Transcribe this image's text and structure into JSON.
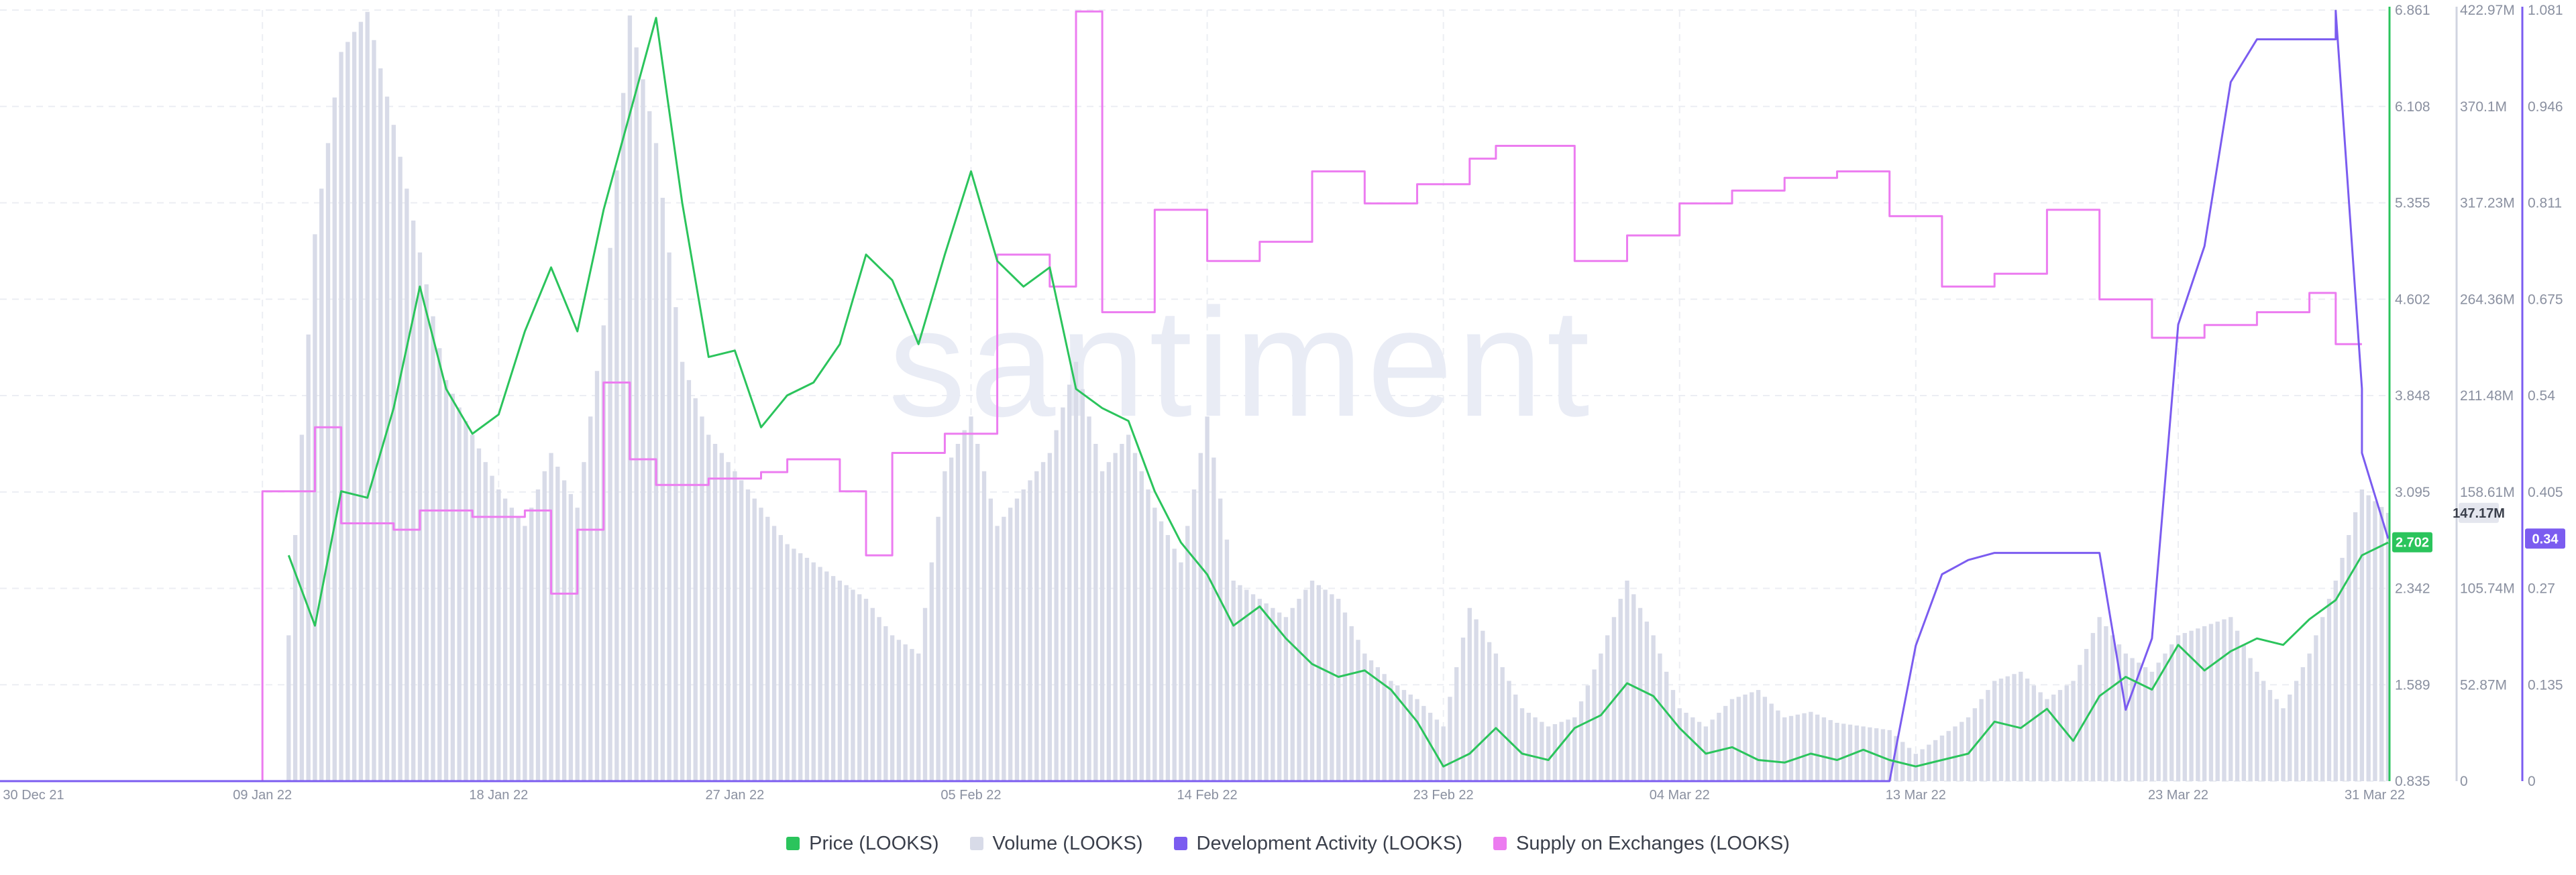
{
  "watermark": "santiment",
  "chart_data": {
    "type": "line",
    "x_tick_labels": [
      "30 Dec 21",
      "09 Jan 22",
      "18 Jan 22",
      "27 Jan 22",
      "05 Feb 22",
      "14 Feb 22",
      "23 Feb 22",
      "04 Mar 22",
      "13 Mar 22",
      "23 Mar 22",
      "31 Mar 22"
    ],
    "x_range": [
      "2021-12-30",
      "2022-03-31"
    ],
    "grid": true,
    "legend_position": "bottom-center",
    "axes": {
      "price": {
        "ylim": [
          0.835,
          6.861
        ],
        "tick_labels": [
          "6.861",
          "6.108",
          "5.355",
          "4.602",
          "3.848",
          "3.095",
          "2.342",
          "1.589",
          "0.835"
        ],
        "color": "#2bc45c"
      },
      "volume": {
        "ylim": [
          0,
          422970000
        ],
        "tick_labels": [
          "422.97M",
          "370.1M",
          "317.23M",
          "264.36M",
          "211.48M",
          "158.61M",
          "105.74M",
          "52.87M",
          "0"
        ],
        "color": "#d8dbe8"
      },
      "dev_activity": {
        "ylim": [
          0,
          1.081
        ],
        "tick_labels": [
          "1.081",
          "0.946",
          "0.811",
          "0.675",
          "0.54",
          "0.405",
          "0.27",
          "0.135",
          "0"
        ],
        "color": "#7b5cf0"
      }
    },
    "current_values": {
      "price": "2.702",
      "volume": "147.17M",
      "dev_activity": "0.34"
    },
    "series": [
      {
        "name": "Price (LOOKS)",
        "axis": "price",
        "color": "#2bc45c",
        "points": [
          [
            "2022-01-10",
            2.6
          ],
          [
            "2022-01-11",
            2.05
          ],
          [
            "2022-01-12",
            3.1
          ],
          [
            "2022-01-13",
            3.05
          ],
          [
            "2022-01-14",
            3.75
          ],
          [
            "2022-01-15",
            4.7
          ],
          [
            "2022-01-16",
            3.9
          ],
          [
            "2022-01-17",
            3.55
          ],
          [
            "2022-01-18",
            3.7
          ],
          [
            "2022-01-19",
            4.35
          ],
          [
            "2022-01-20",
            4.85
          ],
          [
            "2022-01-21",
            4.35
          ],
          [
            "2022-01-22",
            5.3
          ],
          [
            "2022-01-23",
            6.05
          ],
          [
            "2022-01-24",
            6.8
          ],
          [
            "2022-01-25",
            5.35
          ],
          [
            "2022-01-26",
            4.15
          ],
          [
            "2022-01-27",
            4.2
          ],
          [
            "2022-01-28",
            3.6
          ],
          [
            "2022-01-29",
            3.85
          ],
          [
            "2022-01-30",
            3.95
          ],
          [
            "2022-01-31",
            4.25
          ],
          [
            "2022-02-01",
            4.95
          ],
          [
            "2022-02-02",
            4.75
          ],
          [
            "2022-02-03",
            4.25
          ],
          [
            "2022-02-04",
            4.95
          ],
          [
            "2022-02-05",
            5.6
          ],
          [
            "2022-02-06",
            4.9
          ],
          [
            "2022-02-07",
            4.7
          ],
          [
            "2022-02-08",
            4.85
          ],
          [
            "2022-02-09",
            3.9
          ],
          [
            "2022-02-10",
            3.75
          ],
          [
            "2022-02-11",
            3.65
          ],
          [
            "2022-02-12",
            3.1
          ],
          [
            "2022-02-13",
            2.7
          ],
          [
            "2022-02-14",
            2.45
          ],
          [
            "2022-02-15",
            2.05
          ],
          [
            "2022-02-16",
            2.2
          ],
          [
            "2022-02-17",
            1.95
          ],
          [
            "2022-02-18",
            1.75
          ],
          [
            "2022-02-19",
            1.65
          ],
          [
            "2022-02-20",
            1.7
          ],
          [
            "2022-02-21",
            1.55
          ],
          [
            "2022-02-22",
            1.3
          ],
          [
            "2022-02-23",
            0.95
          ],
          [
            "2022-02-24",
            1.05
          ],
          [
            "2022-02-25",
            1.25
          ],
          [
            "2022-02-26",
            1.05
          ],
          [
            "2022-02-27",
            1.0
          ],
          [
            "2022-02-28",
            1.25
          ],
          [
            "2022-03-01",
            1.35
          ],
          [
            "2022-03-02",
            1.6
          ],
          [
            "2022-03-03",
            1.5
          ],
          [
            "2022-03-04",
            1.25
          ],
          [
            "2022-03-05",
            1.05
          ],
          [
            "2022-03-06",
            1.1
          ],
          [
            "2022-03-07",
            1.0
          ],
          [
            "2022-03-08",
            0.98
          ],
          [
            "2022-03-09",
            1.05
          ],
          [
            "2022-03-10",
            1.0
          ],
          [
            "2022-03-11",
            1.08
          ],
          [
            "2022-03-12",
            1.0
          ],
          [
            "2022-03-13",
            0.95
          ],
          [
            "2022-03-14",
            1.0
          ],
          [
            "2022-03-15",
            1.05
          ],
          [
            "2022-03-16",
            1.3
          ],
          [
            "2022-03-17",
            1.25
          ],
          [
            "2022-03-18",
            1.4
          ],
          [
            "2022-03-19",
            1.15
          ],
          [
            "2022-03-20",
            1.5
          ],
          [
            "2022-03-21",
            1.65
          ],
          [
            "2022-03-22",
            1.55
          ],
          [
            "2022-03-23",
            1.9
          ],
          [
            "2022-03-24",
            1.7
          ],
          [
            "2022-03-25",
            1.85
          ],
          [
            "2022-03-26",
            1.95
          ],
          [
            "2022-03-27",
            1.9
          ],
          [
            "2022-03-28",
            2.1
          ],
          [
            "2022-03-29",
            2.25
          ],
          [
            "2022-03-30",
            2.6
          ],
          [
            "2022-03-31",
            2.7
          ]
        ]
      },
      {
        "name": "Volume (LOOKS)",
        "axis": "volume",
        "color": "#d8dbe8",
        "points": [
          [
            "2022-01-10",
            80000000
          ],
          [
            "2022-01-11",
            300000000
          ],
          [
            "2022-01-12",
            400000000
          ],
          [
            "2022-01-13",
            422000000
          ],
          [
            "2022-01-14",
            360000000
          ],
          [
            "2022-01-15",
            290000000
          ],
          [
            "2022-01-16",
            220000000
          ],
          [
            "2022-01-17",
            190000000
          ],
          [
            "2022-01-18",
            160000000
          ],
          [
            "2022-01-19",
            140000000
          ],
          [
            "2022-01-20",
            180000000
          ],
          [
            "2022-01-21",
            150000000
          ],
          [
            "2022-01-22",
            250000000
          ],
          [
            "2022-01-23",
            420000000
          ],
          [
            "2022-01-24",
            350000000
          ],
          [
            "2022-01-25",
            230000000
          ],
          [
            "2022-01-26",
            190000000
          ],
          [
            "2022-01-27",
            170000000
          ],
          [
            "2022-01-28",
            150000000
          ],
          [
            "2022-01-29",
            130000000
          ],
          [
            "2022-01-30",
            120000000
          ],
          [
            "2022-01-31",
            110000000
          ],
          [
            "2022-02-01",
            100000000
          ],
          [
            "2022-02-02",
            80000000
          ],
          [
            "2022-02-03",
            70000000
          ],
          [
            "2022-02-04",
            170000000
          ],
          [
            "2022-02-05",
            200000000
          ],
          [
            "2022-02-06",
            140000000
          ],
          [
            "2022-02-07",
            160000000
          ],
          [
            "2022-02-08",
            180000000
          ],
          [
            "2022-02-09",
            230000000
          ],
          [
            "2022-02-10",
            170000000
          ],
          [
            "2022-02-11",
            190000000
          ],
          [
            "2022-02-12",
            150000000
          ],
          [
            "2022-02-13",
            120000000
          ],
          [
            "2022-02-14",
            200000000
          ],
          [
            "2022-02-15",
            110000000
          ],
          [
            "2022-02-16",
            100000000
          ],
          [
            "2022-02-17",
            90000000
          ],
          [
            "2022-02-18",
            110000000
          ],
          [
            "2022-02-19",
            100000000
          ],
          [
            "2022-02-20",
            70000000
          ],
          [
            "2022-02-21",
            55000000
          ],
          [
            "2022-02-22",
            45000000
          ],
          [
            "2022-02-23",
            30000000
          ],
          [
            "2022-02-24",
            95000000
          ],
          [
            "2022-02-25",
            70000000
          ],
          [
            "2022-02-26",
            40000000
          ],
          [
            "2022-02-27",
            30000000
          ],
          [
            "2022-02-28",
            35000000
          ],
          [
            "2022-03-01",
            70000000
          ],
          [
            "2022-03-02",
            110000000
          ],
          [
            "2022-03-03",
            80000000
          ],
          [
            "2022-03-04",
            40000000
          ],
          [
            "2022-03-05",
            30000000
          ],
          [
            "2022-03-06",
            45000000
          ],
          [
            "2022-03-07",
            50000000
          ],
          [
            "2022-03-08",
            35000000
          ],
          [
            "2022-03-09",
            38000000
          ],
          [
            "2022-03-10",
            32000000
          ],
          [
            "2022-03-11",
            30000000
          ],
          [
            "2022-03-12",
            28000000
          ],
          [
            "2022-03-13",
            15000000
          ],
          [
            "2022-03-14",
            25000000
          ],
          [
            "2022-03-15",
            35000000
          ],
          [
            "2022-03-16",
            55000000
          ],
          [
            "2022-03-17",
            60000000
          ],
          [
            "2022-03-18",
            45000000
          ],
          [
            "2022-03-19",
            55000000
          ],
          [
            "2022-03-20",
            90000000
          ],
          [
            "2022-03-21",
            70000000
          ],
          [
            "2022-03-22",
            60000000
          ],
          [
            "2022-03-23",
            80000000
          ],
          [
            "2022-03-24",
            85000000
          ],
          [
            "2022-03-25",
            90000000
          ],
          [
            "2022-03-26",
            60000000
          ],
          [
            "2022-03-27",
            40000000
          ],
          [
            "2022-03-28",
            70000000
          ],
          [
            "2022-03-29",
            110000000
          ],
          [
            "2022-03-30",
            160000000
          ],
          [
            "2022-03-31",
            147170000
          ]
        ]
      },
      {
        "name": "Development Activity (LOOKS)",
        "axis": "dev_activity",
        "color": "#7b5cf0",
        "points": [
          [
            "2021-12-30",
            0
          ],
          [
            "2022-03-12",
            0
          ],
          [
            "2022-03-13",
            0.19
          ],
          [
            "2022-03-14",
            0.29
          ],
          [
            "2022-03-15",
            0.31
          ],
          [
            "2022-03-16",
            0.32
          ],
          [
            "2022-03-20",
            0.32
          ],
          [
            "2022-03-21",
            0.1
          ],
          [
            "2022-03-22",
            0.2
          ],
          [
            "2022-03-23",
            0.64
          ],
          [
            "2022-03-24",
            0.75
          ],
          [
            "2022-03-25",
            0.98
          ],
          [
            "2022-03-26",
            1.04
          ],
          [
            "2022-03-29",
            1.04
          ],
          [
            "2022-03-29",
            1.08
          ],
          [
            "2022-03-30",
            0.55
          ],
          [
            "2022-03-30",
            0.46
          ],
          [
            "2022-03-31",
            0.34
          ]
        ]
      },
      {
        "name": "Supply on Exchanges (LOOKS)",
        "axis": "price",
        "color": "#ec7cf0",
        "points": [
          [
            "2021-12-30",
            0.835
          ],
          [
            "2022-01-08",
            0.835
          ],
          [
            "2022-01-09",
            3.1
          ],
          [
            "2022-01-11",
            3.6
          ],
          [
            "2022-01-12",
            2.85
          ],
          [
            "2022-01-14",
            2.8
          ],
          [
            "2022-01-15",
            2.95
          ],
          [
            "2022-01-17",
            2.9
          ],
          [
            "2022-01-19",
            2.95
          ],
          [
            "2022-01-20",
            2.3
          ],
          [
            "2022-01-21",
            2.8
          ],
          [
            "2022-01-22",
            3.95
          ],
          [
            "2022-01-23",
            3.35
          ],
          [
            "2022-01-24",
            3.15
          ],
          [
            "2022-01-26",
            3.2
          ],
          [
            "2022-01-28",
            3.25
          ],
          [
            "2022-01-29",
            3.35
          ],
          [
            "2022-01-31",
            3.1
          ],
          [
            "2022-02-01",
            2.6
          ],
          [
            "2022-02-02",
            3.4
          ],
          [
            "2022-02-04",
            3.55
          ],
          [
            "2022-02-06",
            4.95
          ],
          [
            "2022-02-08",
            4.7
          ],
          [
            "2022-02-09",
            6.85
          ],
          [
            "2022-02-10",
            4.5
          ],
          [
            "2022-02-12",
            5.3
          ],
          [
            "2022-02-14",
            4.9
          ],
          [
            "2022-02-16",
            5.05
          ],
          [
            "2022-02-18",
            5.6
          ],
          [
            "2022-02-20",
            5.35
          ],
          [
            "2022-02-22",
            5.5
          ],
          [
            "2022-02-24",
            5.7
          ],
          [
            "2022-02-25",
            5.8
          ],
          [
            "2022-02-27",
            5.8
          ],
          [
            "2022-02-28",
            4.9
          ],
          [
            "2022-03-02",
            5.1
          ],
          [
            "2022-03-04",
            5.35
          ],
          [
            "2022-03-06",
            5.45
          ],
          [
            "2022-03-08",
            5.55
          ],
          [
            "2022-03-10",
            5.6
          ],
          [
            "2022-03-12",
            5.25
          ],
          [
            "2022-03-14",
            4.7
          ],
          [
            "2022-03-16",
            4.8
          ],
          [
            "2022-03-18",
            5.3
          ],
          [
            "2022-03-20",
            4.6
          ],
          [
            "2022-03-22",
            4.3
          ],
          [
            "2022-03-24",
            4.4
          ],
          [
            "2022-03-26",
            4.5
          ],
          [
            "2022-03-28",
            4.65
          ],
          [
            "2022-03-29",
            4.25
          ],
          [
            "2022-03-30",
            4.25
          ]
        ]
      }
    ]
  }
}
